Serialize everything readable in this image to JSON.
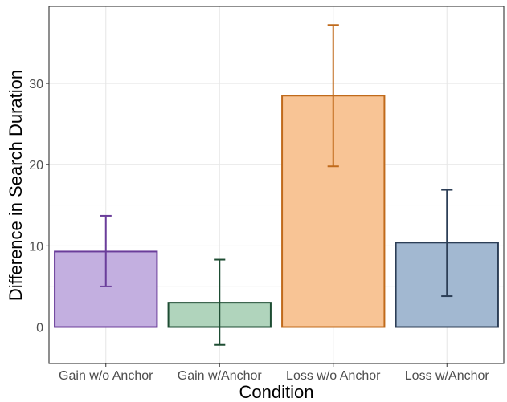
{
  "chart_data": {
    "type": "bar",
    "xlabel": "Condition",
    "ylabel": "Difference in Search Duration",
    "categories": [
      "Gain w/o Anchor",
      "Gain w/Anchor",
      "Loss w/o Anchor",
      "Loss w/Anchor"
    ],
    "values": [
      9.3,
      3.0,
      28.5,
      10.4
    ],
    "error_low": [
      5.0,
      -2.2,
      19.8,
      3.8
    ],
    "error_high": [
      13.7,
      8.3,
      37.2,
      16.9
    ],
    "ylim": [
      -4.5,
      39.5
    ],
    "y_ticks": [
      0,
      10,
      20,
      30
    ],
    "y_tick_labels": [
      "0",
      "10",
      "20",
      "30"
    ],
    "grid": true,
    "colors": {
      "fill": [
        "#c3afe0",
        "#b0d4bc",
        "#f8c495",
        "#a2b8d1"
      ],
      "stroke": [
        "#6a3d9a",
        "#1e4d33",
        "#c06a1b",
        "#2c3e56"
      ]
    }
  }
}
